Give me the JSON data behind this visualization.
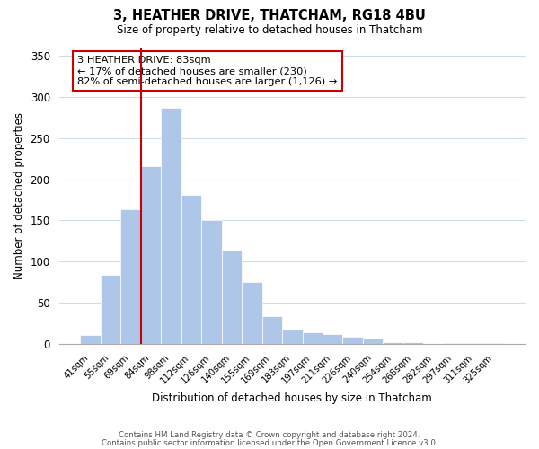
{
  "title": "3, HEATHER DRIVE, THATCHAM, RG18 4BU",
  "subtitle": "Size of property relative to detached houses in Thatcham",
  "xlabel": "Distribution of detached houses by size in Thatcham",
  "ylabel": "Number of detached properties",
  "bar_labels": [
    "41sqm",
    "55sqm",
    "69sqm",
    "84sqm",
    "98sqm",
    "112sqm",
    "126sqm",
    "140sqm",
    "155sqm",
    "169sqm",
    "183sqm",
    "197sqm",
    "211sqm",
    "226sqm",
    "240sqm",
    "254sqm",
    "268sqm",
    "282sqm",
    "297sqm",
    "311sqm",
    "325sqm"
  ],
  "bar_values": [
    11,
    84,
    164,
    216,
    287,
    181,
    150,
    114,
    75,
    34,
    18,
    14,
    12,
    9,
    7,
    3,
    2,
    0,
    1,
    1,
    1
  ],
  "bar_color": "#aec6e8",
  "bar_edge_color": "#ffffff",
  "vline_x": 2.5,
  "vline_color": "#cc0000",
  "annotation_title": "3 HEATHER DRIVE: 83sqm",
  "annotation_line1": "← 17% of detached houses are smaller (230)",
  "annotation_line2": "82% of semi-detached houses are larger (1,126) →",
  "annotation_box_edgecolor": "#cc0000",
  "annotation_box_facecolor": "#ffffff",
  "ylim": [
    0,
    360
  ],
  "yticks": [
    0,
    50,
    100,
    150,
    200,
    250,
    300,
    350
  ],
  "footer_line1": "Contains HM Land Registry data © Crown copyright and database right 2024.",
  "footer_line2": "Contains public sector information licensed under the Open Government Licence v3.0.",
  "background_color": "#ffffff",
  "grid_color": "#ccdde8"
}
